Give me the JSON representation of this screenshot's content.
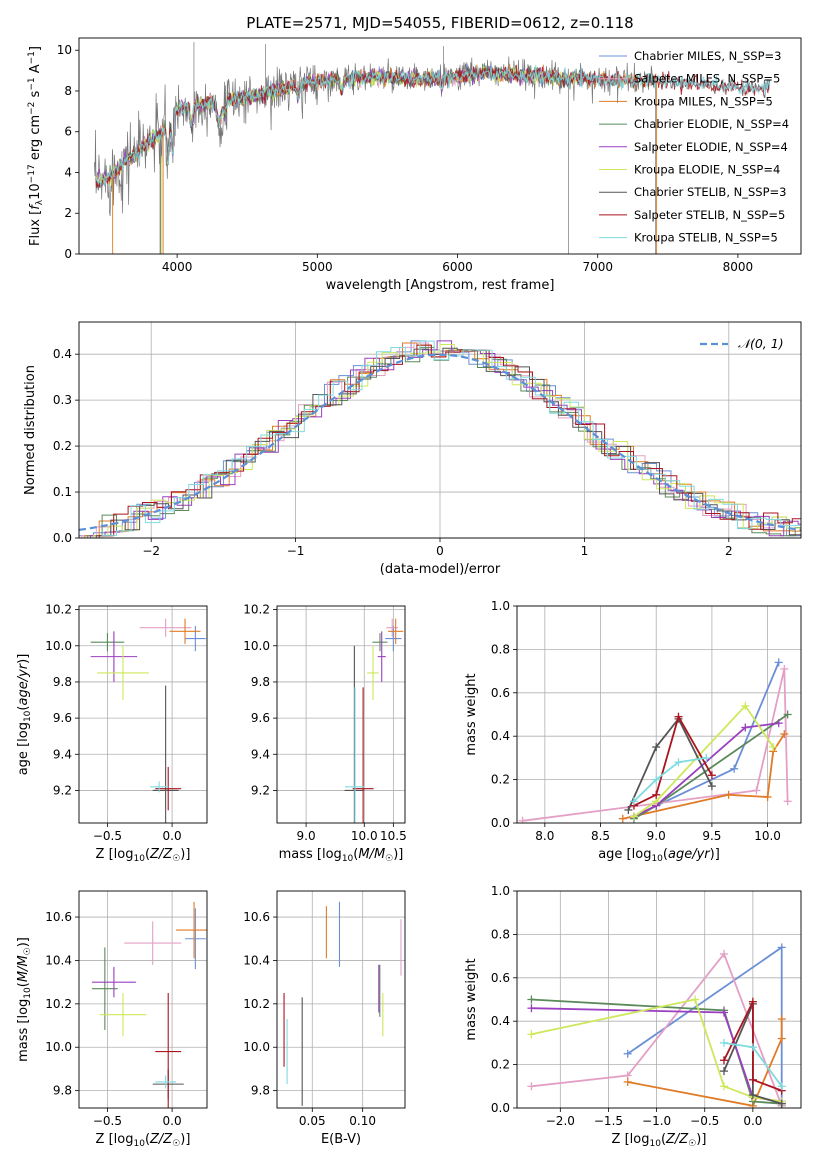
{
  "figure": {
    "title": "PLATE=2571, MJD=54055, FIBERID=0612, z=0.118"
  },
  "models": [
    {
      "name": "Chabrier MILES",
      "nssp": 3,
      "color": "#6b8fd6"
    },
    {
      "name": "Salpeter MILES",
      "nssp": 5,
      "color": "#e49fc5"
    },
    {
      "name": "Kroupa MILES",
      "nssp": 5,
      "color": "#e07b27"
    },
    {
      "name": "Chabrier ELODIE",
      "nssp": 4,
      "color": "#5a8a5a"
    },
    {
      "name": "Salpeter ELODIE",
      "nssp": 4,
      "color": "#9a3fbf"
    },
    {
      "name": "Kroupa ELODIE",
      "nssp": 4,
      "color": "#cde85a"
    },
    {
      "name": "Chabrier STELIB",
      "nssp": 3,
      "color": "#555555"
    },
    {
      "name": "Salpeter STELIB",
      "nssp": 5,
      "color": "#aa1520"
    },
    {
      "name": "Kroupa STELIB",
      "nssp": 5,
      "color": "#7fdbe0"
    }
  ],
  "legend_labels": [
    "Chabrier MILES, N_SSP=3",
    "Salpeter MILES, N_SSP=5",
    "Kroupa MILES, N_SSP=5",
    "Chabrier ELODIE, N_SSP=4",
    "Salpeter ELODIE, N_SSP=4",
    "Kroupa ELODIE, N_SSP=4",
    "Chabrier STELIB, N_SSP=3",
    "Salpeter STELIB, N_SSP=5",
    "Kroupa STELIB, N_SSP=5"
  ],
  "chart_data": [
    {
      "id": "spectrum",
      "type": "line",
      "xlabel": "wavelength [Angstrom, rest frame]",
      "ylabel": "Flux [f_λ 10^-17 erg cm^-2 s^-1 A^-1]",
      "xlim": [
        3300,
        8450
      ],
      "ylim": [
        0,
        10.6
      ],
      "xticks": [
        4000,
        5000,
        6000,
        7000,
        8000
      ],
      "yticks": [
        0,
        2,
        4,
        6,
        8,
        10
      ],
      "grid": false,
      "legend_placement": "right",
      "continuum": {
        "x": [
          3400,
          3500,
          3600,
          3700,
          3800,
          3900,
          4000,
          4200,
          4400,
          4600,
          4800,
          5000,
          5200,
          5400,
          5600,
          5800,
          6000,
          6200,
          6400,
          6600,
          6800,
          7000,
          7200,
          7400,
          7600,
          7800,
          8000,
          8230
        ],
        "y": [
          3.5,
          3.7,
          4.3,
          5.0,
          5.5,
          6.0,
          7.1,
          7.4,
          7.6,
          7.8,
          8.2,
          8.5,
          8.6,
          8.7,
          8.6,
          8.6,
          8.7,
          8.9,
          8.8,
          8.7,
          8.6,
          8.6,
          8.5,
          8.5,
          8.4,
          8.3,
          8.2,
          8.1
        ]
      }
    },
    {
      "id": "residuals",
      "type": "histogram",
      "xlabel": "(data-model)/error",
      "ylabel": "Normed distribution",
      "xlim": [
        -2.5,
        2.5
      ],
      "ylim": [
        0,
        0.47
      ],
      "xticks": [
        -2,
        -1,
        0,
        1,
        2
      ],
      "yticks": [
        0.0,
        0.1,
        0.2,
        0.3,
        0.4
      ],
      "grid": true,
      "bin_width": 0.1,
      "legend_placement": "top-right",
      "reference_curve": {
        "name": "𝒩(0, 1)",
        "mean": 0,
        "sigma": 1,
        "color": "#5b8fd6"
      }
    },
    {
      "id": "age_vs_Z",
      "type": "errorbar",
      "xlabel": "Z [log10(Z/Z☉)]",
      "ylabel": "age [log10(age/yr)]",
      "xlim": [
        -0.72,
        0.27
      ],
      "ylim": [
        9.02,
        10.22
      ],
      "xticks": [
        -0.5,
        0.0
      ],
      "yticks": [
        9.2,
        9.4,
        9.6,
        9.8,
        10.0,
        10.2
      ],
      "grid": true,
      "points": [
        {
          "model": 0,
          "x": 0.18,
          "y": 10.04,
          "xerr": 0.08,
          "yerr": 0.07
        },
        {
          "model": 1,
          "x": -0.05,
          "y": 10.1,
          "xerr": 0.2,
          "yerr": 0.05
        },
        {
          "model": 2,
          "x": 0.1,
          "y": 10.08,
          "xerr": 0.12,
          "yerr": 0.07
        },
        {
          "model": 3,
          "x": -0.5,
          "y": 10.02,
          "xerr": 0.13,
          "yerr": 0.05
        },
        {
          "model": 4,
          "x": -0.45,
          "y": 9.94,
          "xerr": 0.18,
          "yerr": 0.14
        },
        {
          "model": 5,
          "x": -0.38,
          "y": 9.85,
          "xerr": 0.2,
          "yerr": 0.15
        },
        {
          "model": 6,
          "x": -0.05,
          "y": 9.2,
          "xerr": 0.1,
          "yerr": 0.58
        },
        {
          "model": 7,
          "x": -0.03,
          "y": 9.21,
          "xerr": 0.1,
          "yerr": 0.12
        },
        {
          "model": 8,
          "x": -0.1,
          "y": 9.22,
          "xerr": 0.07,
          "yerr": 0.03
        }
      ]
    },
    {
      "id": "age_vs_mass",
      "type": "errorbar",
      "xlabel": "mass [log10(M/M☉)]",
      "ylabel": "",
      "xlim": [
        8.5,
        10.7
      ],
      "ylim": [
        9.02,
        10.22
      ],
      "xticks": [
        9.0,
        10.0,
        10.5
      ],
      "yticks": [
        9.2,
        9.4,
        9.6,
        9.8,
        10.0,
        10.2
      ],
      "grid": true,
      "points": [
        {
          "model": 0,
          "x": 10.5,
          "y": 10.04,
          "xerr": 0.14,
          "yerr": 0.07
        },
        {
          "model": 1,
          "x": 10.48,
          "y": 10.1,
          "xerr": 0.1,
          "yerr": 0.05
        },
        {
          "model": 2,
          "x": 10.54,
          "y": 10.08,
          "xerr": 0.13,
          "yerr": 0.07
        },
        {
          "model": 3,
          "x": 10.27,
          "y": 10.02,
          "xerr": 0.13,
          "yerr": 0.05
        },
        {
          "model": 4,
          "x": 10.3,
          "y": 9.94,
          "xerr": 0.07,
          "yerr": 0.14
        },
        {
          "model": 5,
          "x": 10.15,
          "y": 9.85,
          "xerr": 0.1,
          "yerr": 0.15
        },
        {
          "model": 6,
          "x": 9.83,
          "y": 9.2,
          "xerr": 0.17,
          "yerr": 0.8
        },
        {
          "model": 7,
          "x": 9.98,
          "y": 9.21,
          "xerr": 0.18,
          "yerr": 0.56
        },
        {
          "model": 8,
          "x": 9.84,
          "y": 9.22,
          "xerr": 0.17,
          "yerr": 0.55
        }
      ]
    },
    {
      "id": "weight_vs_age",
      "type": "line",
      "xlabel": "age [log10(age/yr)]",
      "ylabel": "mass weight",
      "xlim": [
        7.75,
        10.3
      ],
      "ylim": [
        0,
        1.0
      ],
      "xticks": [
        8.0,
        8.5,
        9.0,
        9.5,
        10.0
      ],
      "yticks": [
        0.0,
        0.2,
        0.4,
        0.6,
        0.8,
        1.0
      ],
      "grid": true,
      "series": [
        {
          "model": 0,
          "x": [
            8.8,
            9.7,
            10.1
          ],
          "y": [
            0.03,
            0.25,
            0.74
          ]
        },
        {
          "model": 1,
          "x": [
            7.8,
            9.9,
            10.15,
            10.18
          ],
          "y": [
            0.01,
            0.15,
            0.71,
            0.1
          ]
        },
        {
          "model": 2,
          "x": [
            8.7,
            9.65,
            10.0,
            10.05,
            10.15
          ],
          "y": [
            0.02,
            0.13,
            0.12,
            0.33,
            0.41
          ]
        },
        {
          "model": 3,
          "x": [
            8.8,
            9.0,
            10.18
          ],
          "y": [
            0.02,
            0.08,
            0.5
          ]
        },
        {
          "model": 4,
          "x": [
            8.8,
            9.0,
            9.8,
            10.1
          ],
          "y": [
            0.03,
            0.08,
            0.44,
            0.46
          ]
        },
        {
          "model": 5,
          "x": [
            8.8,
            9.0,
            9.8,
            10.05
          ],
          "y": [
            0.03,
            0.1,
            0.54,
            0.35
          ]
        },
        {
          "model": 6,
          "x": [
            8.75,
            9.0,
            9.2,
            9.5
          ],
          "y": [
            0.06,
            0.35,
            0.48,
            0.17
          ]
        },
        {
          "model": 7,
          "x": [
            8.8,
            9.0,
            9.2,
            9.5
          ],
          "y": [
            0.08,
            0.13,
            0.49,
            0.22
          ]
        },
        {
          "model": 8,
          "x": [
            8.8,
            9.0,
            9.2,
            9.45
          ],
          "y": [
            0.1,
            0.2,
            0.28,
            0.3
          ]
        }
      ]
    },
    {
      "id": "mass_vs_Z",
      "type": "errorbar",
      "xlabel": "Z [log10(Z/Z☉)]",
      "ylabel": "mass [log10(M/M☉)]",
      "xlim": [
        -0.72,
        0.27
      ],
      "ylim": [
        9.72,
        10.72
      ],
      "xticks": [
        -0.5,
        0.0
      ],
      "yticks": [
        9.8,
        10.0,
        10.2,
        10.4,
        10.6
      ],
      "grid": true,
      "points": [
        {
          "model": 0,
          "x": 0.18,
          "y": 10.5,
          "xerr": 0.08,
          "yerr": 0.14
        },
        {
          "model": 1,
          "x": -0.15,
          "y": 10.48,
          "xerr": 0.22,
          "yerr": 0.1
        },
        {
          "model": 2,
          "x": 0.17,
          "y": 10.54,
          "xerr": 0.14,
          "yerr": 0.13
        },
        {
          "model": 3,
          "x": -0.52,
          "y": 10.27,
          "xerr": 0.1,
          "yerr": 0.19
        },
        {
          "model": 4,
          "x": -0.45,
          "y": 10.3,
          "xerr": 0.17,
          "yerr": 0.07
        },
        {
          "model": 5,
          "x": -0.38,
          "y": 10.15,
          "xerr": 0.18,
          "yerr": 0.1
        },
        {
          "model": 6,
          "x": -0.03,
          "y": 9.83,
          "xerr": 0.12,
          "yerr": 0.07
        },
        {
          "model": 7,
          "x": -0.03,
          "y": 9.98,
          "xerr": 0.1,
          "yerr": 0.27
        },
        {
          "model": 8,
          "x": -0.05,
          "y": 9.84,
          "xerr": 0.08,
          "yerr": 0.03
        }
      ]
    },
    {
      "id": "mass_vs_ebv",
      "type": "errorbar",
      "xlabel": "E(B-V)",
      "ylabel": "",
      "xlim": [
        0.015,
        0.142
      ],
      "ylim": [
        9.72,
        10.72
      ],
      "xticks": [
        0.05,
        0.1
      ],
      "yticks": [
        9.8,
        10.0,
        10.2,
        10.4,
        10.6
      ],
      "grid": true,
      "points": [
        {
          "model": 0,
          "x": 0.077,
          "y": 10.52,
          "xerr": 0.0,
          "yerr": 0.15
        },
        {
          "model": 1,
          "x": 0.138,
          "y": 10.46,
          "xerr": 0.0,
          "yerr": 0.13
        },
        {
          "model": 2,
          "x": 0.064,
          "y": 10.53,
          "xerr": 0.0,
          "yerr": 0.12
        },
        {
          "model": 3,
          "x": 0.117,
          "y": 10.26,
          "xerr": 0.0,
          "yerr": 0.12
        },
        {
          "model": 4,
          "x": 0.116,
          "y": 10.27,
          "xerr": 0.0,
          "yerr": 0.11
        },
        {
          "model": 5,
          "x": 0.12,
          "y": 10.15,
          "xerr": 0.0,
          "yerr": 0.1
        },
        {
          "model": 6,
          "x": 0.04,
          "y": 9.98,
          "xerr": 0.0,
          "yerr": 0.25
        },
        {
          "model": 7,
          "x": 0.022,
          "y": 10.08,
          "xerr": 0.0,
          "yerr": 0.17
        },
        {
          "model": 8,
          "x": 0.025,
          "y": 9.98,
          "xerr": 0.0,
          "yerr": 0.15
        }
      ]
    },
    {
      "id": "weight_vs_Z",
      "type": "line",
      "xlabel": "Z [log10(Z/Z☉)]",
      "ylabel": "mass weight",
      "xlim": [
        -2.45,
        0.5
      ],
      "ylim": [
        0,
        1.0
      ],
      "xticks": [
        -2.0,
        -1.5,
        -1.0,
        -0.5,
        0.0
      ],
      "yticks": [
        0.0,
        0.2,
        0.4,
        0.6,
        0.8,
        1.0
      ],
      "grid": true,
      "series": [
        {
          "model": 0,
          "x": [
            -1.3,
            0.3,
            0.3
          ],
          "y": [
            0.25,
            0.74,
            0.01
          ]
        },
        {
          "model": 1,
          "x": [
            -2.3,
            -1.3,
            -0.3,
            0.3
          ],
          "y": [
            0.1,
            0.15,
            0.71,
            0.01
          ]
        },
        {
          "model": 2,
          "x": [
            -1.3,
            0.0,
            0.3,
            0.3
          ],
          "y": [
            0.12,
            0.01,
            0.32,
            0.41
          ]
        },
        {
          "model": 3,
          "x": [
            -2.3,
            -0.3,
            0.0,
            0.3
          ],
          "y": [
            0.5,
            0.45,
            0.03,
            0.02
          ]
        },
        {
          "model": 4,
          "x": [
            -2.3,
            -0.3,
            0.0,
            0.3
          ],
          "y": [
            0.46,
            0.44,
            0.05,
            0.03
          ]
        },
        {
          "model": 5,
          "x": [
            -2.3,
            -0.6,
            -0.3,
            0.0,
            0.3
          ],
          "y": [
            0.34,
            0.5,
            0.1,
            0.05,
            0.03
          ]
        },
        {
          "model": 6,
          "x": [
            -0.3,
            0.0,
            0.0,
            0.3
          ],
          "y": [
            0.17,
            0.48,
            0.06,
            0.02
          ]
        },
        {
          "model": 7,
          "x": [
            -0.3,
            0.0,
            0.0,
            0.3
          ],
          "y": [
            0.22,
            0.49,
            0.13,
            0.08
          ]
        },
        {
          "model": 8,
          "x": [
            -0.3,
            0.0,
            0.3
          ],
          "y": [
            0.3,
            0.28,
            0.1
          ]
        }
      ]
    }
  ]
}
